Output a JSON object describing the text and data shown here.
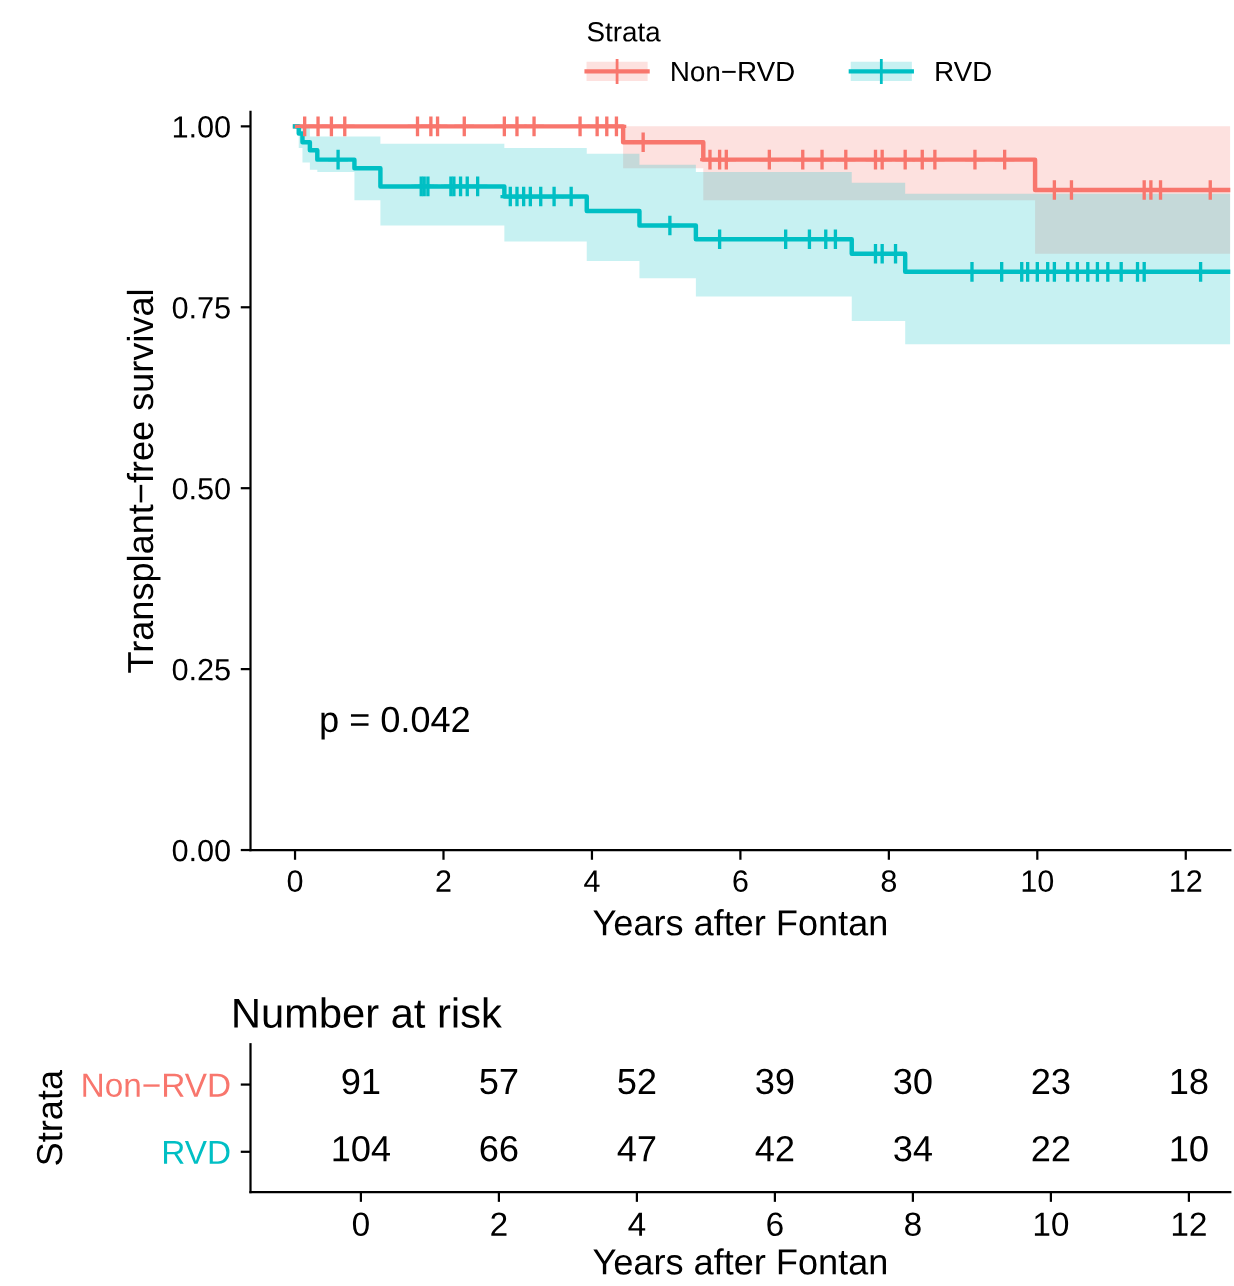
{
  "chart_data": [
    {
      "type": "step",
      "xlabel": "Years after Fontan",
      "ylabel": "Transplant−free survival",
      "legend_title": "Strata",
      "legend": "top",
      "grid": false,
      "xlim": [
        -0.6,
        12.6
      ],
      "xticks": [
        0,
        2,
        4,
        6,
        8,
        10,
        12
      ],
      "ylim": [
        0,
        1.02
      ],
      "yticks": [
        {
          "value": 0,
          "label": "0.00"
        },
        {
          "value": 0.25,
          "label": "0.25"
        },
        {
          "value": 0.5,
          "label": "0.50"
        },
        {
          "value": 0.75,
          "label": "0.75"
        },
        {
          "value": 1,
          "label": "1.00"
        }
      ],
      "annotations": [
        "p = 0.042"
      ],
      "series": [
        {
          "name": "Non−RVD",
          "color": "#f8766d",
          "x": [
            0,
            4.42,
            5.5,
            9.97,
            12.6
          ],
          "values": [
            1.0,
            0.978,
            0.954,
            0.912,
            0.912
          ],
          "lower": [
            1.0,
            0.942,
            0.898,
            0.824,
            0.824
          ],
          "upper": [
            1.0,
            1.0,
            1.0,
            1.0,
            1.0
          ]
        },
        {
          "name": "RVD",
          "color": "#00bfc4",
          "x": [
            0,
            0.05,
            0.1,
            0.2,
            0.3,
            0.8,
            1.15,
            2.82,
            3.93,
            4.64,
            5.4,
            7.5,
            8.22,
            12.6
          ],
          "values": [
            1.0,
            0.99,
            0.978,
            0.967,
            0.954,
            0.942,
            0.917,
            0.903,
            0.883,
            0.863,
            0.844,
            0.824,
            0.799,
            0.799
          ],
          "lower": [
            1.0,
            0.97,
            0.95,
            0.94,
            0.937,
            0.898,
            0.863,
            0.841,
            0.814,
            0.79,
            0.765,
            0.731,
            0.699,
            0.699
          ],
          "upper": [
            1.0,
            1.0,
            1.0,
            0.986,
            0.986,
            0.986,
            0.976,
            0.97,
            0.962,
            0.947,
            0.937,
            0.922,
            0.907,
            0.907
          ]
        },
        {
          "type": "scatter",
          "marker": "cross",
          "color": "#f8766d",
          "x": [
            0.13,
            0.31,
            0.49,
            0.67,
            1.65,
            1.83,
            1.92,
            2.28,
            2.82,
            2.99,
            3.22,
            3.84,
            4.07,
            4.2,
            4.33,
            4.69,
            5.59,
            5.72,
            5.81,
            6.39,
            6.84,
            7.1,
            7.42,
            7.82,
            7.91,
            8.22,
            8.45,
            8.62,
            9.16,
            9.56,
            10.23,
            10.46,
            11.44,
            11.53,
            11.66,
            12.33
          ],
          "values": [
            1.0,
            1.0,
            1.0,
            1.0,
            1.0,
            1.0,
            1.0,
            1.0,
            1.0,
            1.0,
            1.0,
            1.0,
            1.0,
            1.0,
            1.0,
            0.978,
            0.954,
            0.954,
            0.954,
            0.954,
            0.954,
            0.954,
            0.954,
            0.954,
            0.954,
            0.954,
            0.954,
            0.954,
            0.954,
            0.954,
            0.912,
            0.912,
            0.912,
            0.912,
            0.912,
            0.912
          ]
        },
        {
          "type": "scatter",
          "marker": "cross",
          "color": "#00bfc4",
          "x": [
            0.58,
            1.7,
            1.74,
            1.79,
            2.1,
            2.14,
            2.23,
            2.32,
            2.46,
            2.9,
            2.99,
            3.08,
            3.17,
            3.31,
            3.49,
            3.72,
            5.05,
            5.72,
            6.61,
            6.93,
            7.15,
            7.28,
            7.82,
            7.91,
            8.09,
            9.12,
            9.52,
            9.79,
            9.87,
            10.0,
            10.14,
            10.23,
            10.41,
            10.54,
            10.68,
            10.81,
            10.95,
            11.13,
            11.35,
            11.44,
            12.2
          ],
          "values": [
            0.954,
            0.917,
            0.917,
            0.917,
            0.917,
            0.917,
            0.917,
            0.917,
            0.917,
            0.903,
            0.903,
            0.903,
            0.903,
            0.903,
            0.903,
            0.903,
            0.863,
            0.844,
            0.844,
            0.844,
            0.844,
            0.844,
            0.824,
            0.824,
            0.824,
            0.799,
            0.799,
            0.799,
            0.799,
            0.799,
            0.799,
            0.799,
            0.799,
            0.799,
            0.799,
            0.799,
            0.799,
            0.799,
            0.799,
            0.799,
            0.799
          ]
        }
      ]
    },
    {
      "type": "heatmap",
      "title": "Number at risk",
      "xlabel": "Years after Fontan",
      "ylabel": "Strata",
      "data_labels": true,
      "categories": [
        "0",
        "2",
        "4",
        "6",
        "8",
        "10",
        "12"
      ],
      "y_categories": [
        "Non−RVD",
        "RVD"
      ],
      "colors": [
        "#f8766d",
        "#00bfc4"
      ],
      "cells": [
        [
          91,
          57,
          52,
          39,
          30,
          23,
          18
        ],
        [
          104,
          66,
          47,
          42,
          34,
          22,
          10
        ]
      ]
    }
  ]
}
